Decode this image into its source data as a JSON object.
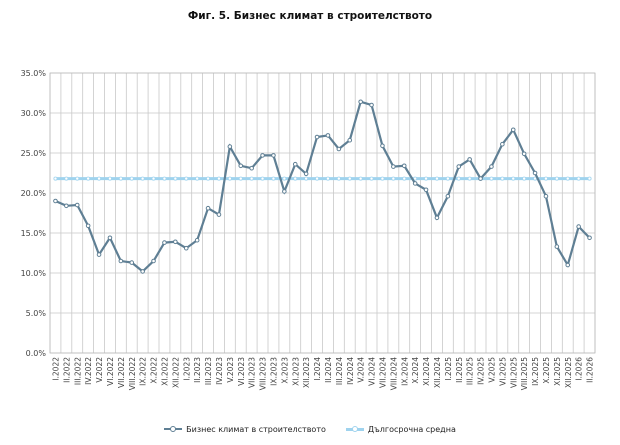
{
  "chart_data": {
    "type": "line",
    "title": "Фиг. 5. Бизнес климат в строителството",
    "xlabel": "",
    "ylabel": "",
    "ylim": [
      0,
      35
    ],
    "yticks": [
      "0.0%",
      "5.0%",
      "10.0%",
      "15.0%",
      "20.0%",
      "25.0%",
      "30.0%",
      "35.0%"
    ],
    "grid": true,
    "legend_position": "bottom",
    "categories": [
      "I.2022",
      "II.2022",
      "III.2022",
      "IV.2022",
      "V.2022",
      "VI.2022",
      "VII.2022",
      "VIII.2022",
      "IX.2022",
      "X.2022",
      "XI.2022",
      "XII.2022",
      "I.2023",
      "II.2023",
      "III.2023",
      "IV.2023",
      "V.2023",
      "VI.2023",
      "VII.2023",
      "VIII.2023",
      "IX.2023",
      "X.2023",
      "XI.2023",
      "XII.2023",
      "I.2024",
      "II.2024",
      "III.2024",
      "IV.2024",
      "V.2024",
      "VI.2024",
      "VII.2024",
      "VIII.2024",
      "IX.2024",
      "X.2024",
      "XI.2024",
      "XII.2024",
      "I.2025",
      "II.2025",
      "III.2025",
      "IV.2025",
      "V.2025",
      "VI.2025",
      "VII.2025",
      "VIII.2025",
      "IX.2025",
      "X.2025",
      "XI.2025",
      "XII.2025",
      "I.2026",
      "II.2026"
    ],
    "series": [
      {
        "name": "Бизнес климат в строителството",
        "color": "#5f7f94",
        "values": [
          19.0,
          18.4,
          18.5,
          15.9,
          12.3,
          14.4,
          11.5,
          11.3,
          10.2,
          11.5,
          13.8,
          13.9,
          13.1,
          14.1,
          18.1,
          17.3,
          25.8,
          23.4,
          23.1,
          24.7,
          24.7,
          20.2,
          23.6,
          22.4,
          27.0,
          27.2,
          25.5,
          26.6,
          31.4,
          31.0,
          25.9,
          23.3,
          23.4,
          21.2,
          20.4,
          16.9,
          19.6,
          23.3,
          24.2,
          21.8,
          23.3,
          26.1,
          27.9,
          24.9,
          22.5,
          19.6,
          13.3,
          11.0,
          15.8,
          14.4
        ]
      },
      {
        "name": "Дългосрочна средна",
        "color": "#9fd3ee",
        "values": [
          21.8,
          21.8,
          21.8,
          21.8,
          21.8,
          21.8,
          21.8,
          21.8,
          21.8,
          21.8,
          21.8,
          21.8,
          21.8,
          21.8,
          21.8,
          21.8,
          21.8,
          21.8,
          21.8,
          21.8,
          21.8,
          21.8,
          21.8,
          21.8,
          21.8,
          21.8,
          21.8,
          21.8,
          21.8,
          21.8,
          21.8,
          21.8,
          21.8,
          21.8,
          21.8,
          21.8,
          21.8,
          21.8,
          21.8,
          21.8,
          21.8,
          21.8,
          21.8,
          21.8,
          21.8,
          21.8,
          21.8,
          21.8,
          21.8,
          21.8
        ]
      }
    ]
  }
}
